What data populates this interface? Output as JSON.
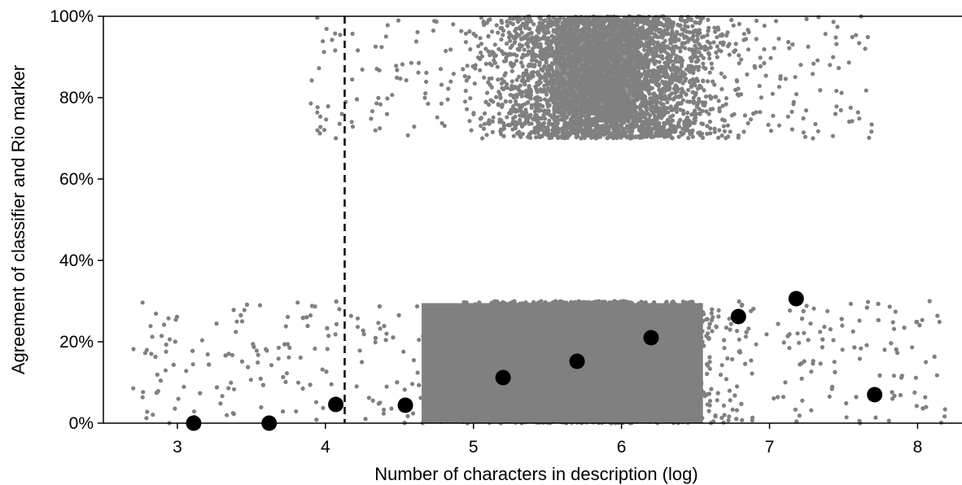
{
  "chart_data": {
    "type": "scatter",
    "title": "",
    "xlabel": "Number of characters in description (log)",
    "ylabel": "Agreement of classifier and Rio marker",
    "xlim": [
      2.5,
      8.3
    ],
    "ylim": [
      0,
      1
    ],
    "x_ticks": [
      3,
      4,
      5,
      6,
      7,
      8
    ],
    "x_tick_labels": [
      "3",
      "4",
      "5",
      "6",
      "7",
      "8"
    ],
    "y_ticks": [
      0,
      0.2,
      0.4,
      0.6,
      0.8,
      1.0
    ],
    "y_tick_labels": [
      "0%",
      "20%",
      "40%",
      "60%",
      "80%",
      "100%"
    ],
    "grid": false,
    "threshold_line": {
      "x": 4.13,
      "style": "dashed",
      "color": "#000000"
    },
    "point_cloud": {
      "color": "#808080",
      "description": "individual descriptions, jittered",
      "bands": [
        {
          "y_range": [
            0.7,
            1.0
          ],
          "x_range": [
            3.9,
            7.7
          ],
          "density_center": 5.9
        },
        {
          "y_range": [
            0.0,
            0.3
          ],
          "x_range": [
            2.7,
            8.2
          ],
          "density_center": 5.8
        }
      ]
    },
    "series": [
      {
        "color": "#000000",
        "points": [
          {
            "x": 3.11,
            "y": 0.0
          },
          {
            "x": 3.62,
            "y": 0.0
          },
          {
            "x": 4.07,
            "y": 0.046
          },
          {
            "x": 4.54,
            "y": 0.044
          },
          {
            "x": 5.2,
            "y": 0.112
          },
          {
            "x": 5.7,
            "y": 0.152
          },
          {
            "x": 6.2,
            "y": 0.21
          },
          {
            "x": 6.79,
            "y": 0.262
          },
          {
            "x": 7.18,
            "y": 0.306
          },
          {
            "x": 7.71,
            "y": 0.07
          }
        ]
      }
    ]
  }
}
